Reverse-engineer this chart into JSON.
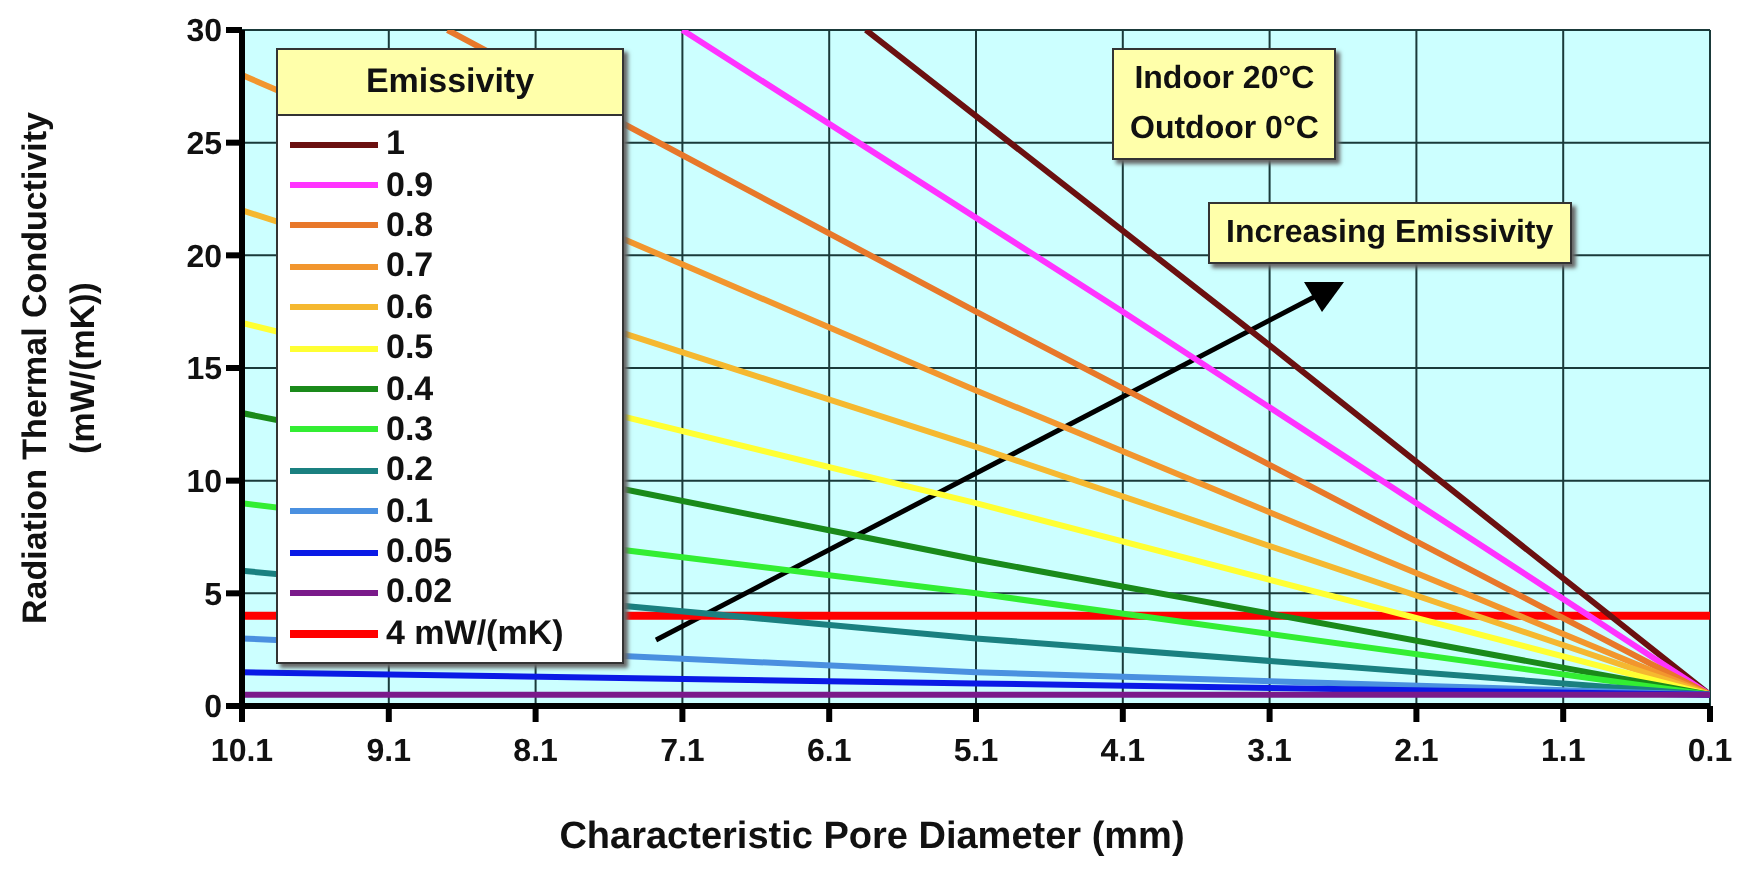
{
  "chart_data": {
    "type": "line",
    "xlabel": "Characteristic Pore Diameter (mm)",
    "ylabel": "Radiation Thermal Conductivity\n(mW/(mK))",
    "legend_title": "Emissivity",
    "legend": "top left",
    "grid": true,
    "marker": "none",
    "line_style": "solid",
    "xlim": [
      10.1,
      0.1
    ],
    "xticks": [
      10.1,
      9.1,
      8.1,
      7.1,
      6.1,
      5.1,
      4.1,
      3.1,
      2.1,
      1.1,
      0.1
    ],
    "ylim": [
      0,
      30
    ],
    "yticks": [
      0,
      5,
      10,
      15,
      20,
      25,
      30
    ],
    "annotations": [
      "Indoor 20°C\nOutdoor 0°C",
      "Increasing Emissivity"
    ],
    "ref_lines": [
      {
        "axis": "y",
        "value": 4,
        "label": "4 mW/(mK)",
        "color": "#ff0000"
      }
    ],
    "series": [
      {
        "name": "1",
        "color": "#6b1010",
        "x": [
          5.85,
          3.1,
          0.1
        ],
        "values": [
          30,
          16,
          0.5
        ]
      },
      {
        "name": "0.9",
        "color": "#ff33ff",
        "x": [
          7.1,
          4.1,
          0.1
        ],
        "values": [
          30,
          17.5,
          0.5
        ]
      },
      {
        "name": "0.8",
        "color": "#e8782a",
        "x": [
          8.7,
          5.1,
          0.1
        ],
        "values": [
          30,
          17.5,
          0.5
        ]
      },
      {
        "name": "0.7",
        "color": "#f2962e",
        "x": [
          10.1,
          5.1,
          0.1
        ],
        "values": [
          28,
          14,
          0.5
        ]
      },
      {
        "name": "0.6",
        "color": "#f5b830",
        "x": [
          10.1,
          5.1,
          0.1
        ],
        "values": [
          22,
          11.5,
          0.5
        ]
      },
      {
        "name": "0.5",
        "color": "#ffff33",
        "x": [
          10.1,
          5.1,
          0.1
        ],
        "values": [
          17,
          9,
          0.5
        ]
      },
      {
        "name": "0.4",
        "color": "#1a8a1a",
        "x": [
          10.1,
          5.1,
          0.1
        ],
        "values": [
          13,
          6.5,
          0.5
        ]
      },
      {
        "name": "0.3",
        "color": "#33ee33",
        "x": [
          10.1,
          5.1,
          0.1
        ],
        "values": [
          9,
          5,
          0.5
        ]
      },
      {
        "name": "0.2",
        "color": "#1a8080",
        "x": [
          10.1,
          5.1,
          0.1
        ],
        "values": [
          6,
          3,
          0.5
        ]
      },
      {
        "name": "0.1",
        "color": "#4a90e0",
        "x": [
          10.1,
          5.1,
          0.1
        ],
        "values": [
          3,
          1.5,
          0.5
        ]
      },
      {
        "name": "0.05",
        "color": "#0a1ae6",
        "x": [
          10.1,
          5.1,
          0.1
        ],
        "values": [
          1.5,
          1,
          0.5
        ]
      },
      {
        "name": "0.02",
        "color": "#7a1a8a",
        "x": [
          10.1,
          5.1,
          0.1
        ],
        "values": [
          0.5,
          0.5,
          0.5
        ]
      }
    ]
  }
}
